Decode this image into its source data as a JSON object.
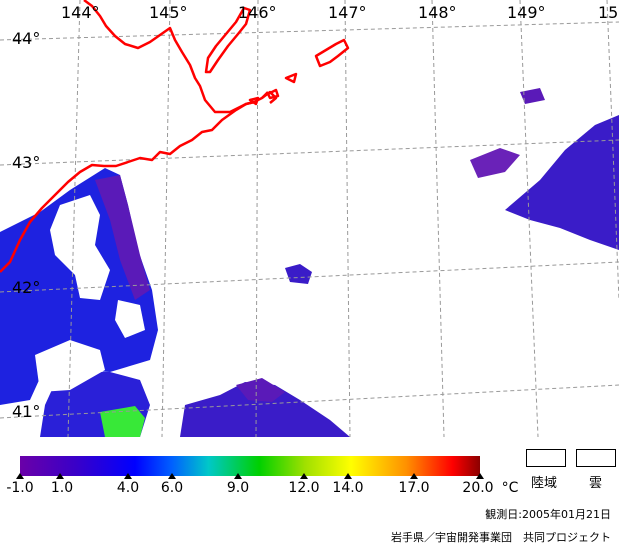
{
  "map": {
    "longitude_labels": [
      "144°",
      "145°",
      "146°",
      "147°",
      "148°",
      "149°",
      "15"
    ],
    "latitude_labels": [
      "44°",
      "43°",
      "42°",
      "41°"
    ],
    "colors": {
      "coastline": "#ff0000",
      "graticule": "#999999",
      "cloud_and_land": "#ffffff"
    }
  },
  "colorbar": {
    "tick_labels": [
      "-1.0",
      "1.0",
      "4.0",
      "6.0",
      "9.0",
      "12.0",
      "14.0",
      "17.0",
      "20.0"
    ],
    "unit": "°C"
  },
  "legend": {
    "land_label": "陸域",
    "cloud_label": "雲"
  },
  "footer": {
    "observation_date": "観測日:2005年01月21日",
    "credit": "岩手県／宇宙開発事業団　共同プロジェクト"
  }
}
